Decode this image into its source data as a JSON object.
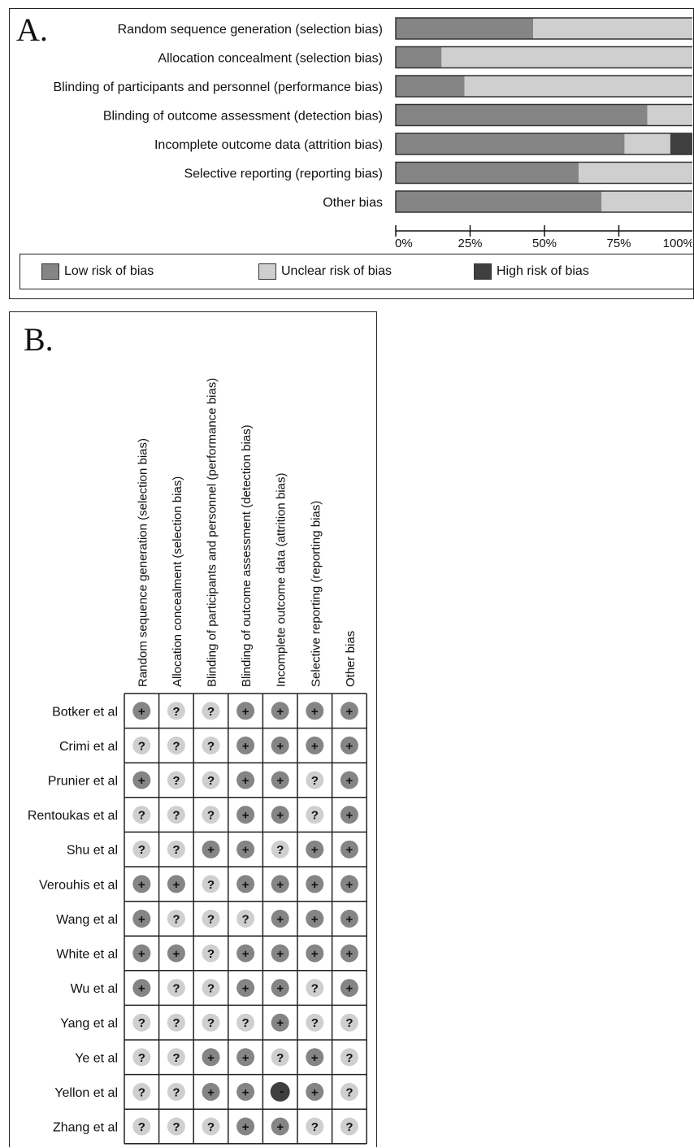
{
  "panel_a": {
    "letter": "A."
  },
  "panel_b": {
    "letter": "B."
  },
  "colors": {
    "low": "#858585",
    "unclear": "#cfcfcf",
    "high": "#3f3f3f"
  },
  "legend": [
    {
      "key": "low",
      "label": "Low risk of bias"
    },
    {
      "key": "unclear",
      "label": "Unclear risk of bias"
    },
    {
      "key": "high",
      "label": "High risk of bias"
    }
  ],
  "chart_data": [
    {
      "type": "bar",
      "orientation": "horizontal",
      "stacked": true,
      "categories": [
        "Random sequence generation (selection bias)",
        "Allocation concealment (selection bias)",
        "Blinding of participants and personnel (performance bias)",
        "Blinding of outcome assessment (detection bias)",
        "Incomplete outcome data (attrition bias)",
        "Selective reporting (reporting bias)",
        "Other bias"
      ],
      "series": [
        {
          "name": "Low risk of bias",
          "values": [
            46.2,
            15.4,
            23.1,
            84.6,
            76.9,
            61.5,
            69.2
          ]
        },
        {
          "name": "Unclear risk of bias",
          "values": [
            53.8,
            84.6,
            76.9,
            15.4,
            15.4,
            38.5,
            30.8
          ]
        },
        {
          "name": "High risk of bias",
          "values": [
            0,
            0,
            0,
            0,
            7.7,
            0,
            0
          ]
        }
      ],
      "x_ticks": [
        "0%",
        "25%",
        "50%",
        "75%",
        "100%"
      ],
      "xlim": [
        0,
        100
      ],
      "legend_position": "bottom"
    },
    {
      "type": "table",
      "columns": [
        "Random sequence generation (selection bias)",
        "Allocation concealment (selection bias)",
        "Blinding of participants and personnel (performance bias)",
        "Blinding of outcome assessment (detection bias)",
        "Incomplete outcome data (attrition bias)",
        "Selective reporting (reporting bias)",
        "Other bias"
      ],
      "rows": [
        {
          "study": "Botker et al",
          "ratings": [
            "+",
            "?",
            "?",
            "+",
            "+",
            "+",
            "+"
          ]
        },
        {
          "study": "Crimi et al",
          "ratings": [
            "?",
            "?",
            "?",
            "+",
            "+",
            "+",
            "+"
          ]
        },
        {
          "study": "Prunier et al",
          "ratings": [
            "+",
            "?",
            "?",
            "+",
            "+",
            "?",
            "+"
          ]
        },
        {
          "study": "Rentoukas et al",
          "ratings": [
            "?",
            "?",
            "?",
            "+",
            "+",
            "?",
            "+"
          ]
        },
        {
          "study": "Shu et al",
          "ratings": [
            "?",
            "?",
            "+",
            "+",
            "?",
            "+",
            "+"
          ]
        },
        {
          "study": "Verouhis et al",
          "ratings": [
            "+",
            "+",
            "?",
            "+",
            "+",
            "+",
            "+"
          ]
        },
        {
          "study": "Wang et al",
          "ratings": [
            "+",
            "?",
            "?",
            "?",
            "+",
            "+",
            "+"
          ]
        },
        {
          "study": "White et al",
          "ratings": [
            "+",
            "+",
            "?",
            "+",
            "+",
            "+",
            "+"
          ]
        },
        {
          "study": "Wu et al",
          "ratings": [
            "+",
            "?",
            "?",
            "+",
            "+",
            "?",
            "+"
          ]
        },
        {
          "study": "Yang et al",
          "ratings": [
            "?",
            "?",
            "?",
            "?",
            "+",
            "?",
            "?"
          ]
        },
        {
          "study": "Ye et al",
          "ratings": [
            "?",
            "?",
            "+",
            "+",
            "?",
            "+",
            "?"
          ]
        },
        {
          "study": "Yellon et al",
          "ratings": [
            "?",
            "?",
            "+",
            "+",
            "-",
            "+",
            "?"
          ]
        },
        {
          "study": "Zhang et al",
          "ratings": [
            "?",
            "?",
            "?",
            "+",
            "+",
            "?",
            "?"
          ]
        }
      ]
    }
  ]
}
